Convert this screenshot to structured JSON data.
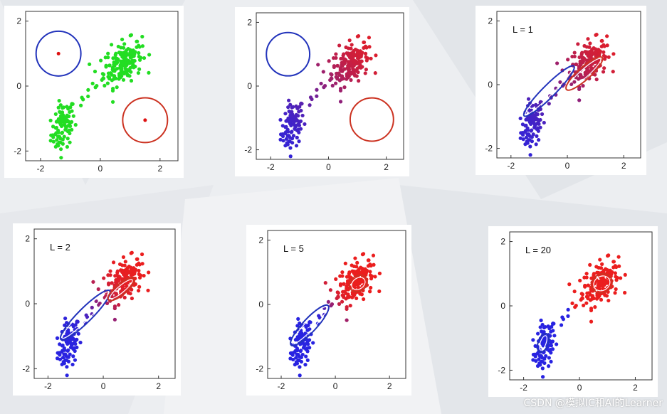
{
  "watermark": "CSDN @模拟IC和AI的Learner",
  "chart_data": [
    {
      "type": "scatter",
      "label": "",
      "xlim": [
        -2.5,
        2.6
      ],
      "ylim": [
        -2.3,
        2.3
      ],
      "xticks": [
        "-2",
        "0",
        "2"
      ],
      "yticks": [
        "2",
        "0",
        "-2"
      ],
      "coloring": "green",
      "centroids": "small",
      "blue_center": [
        -1.4,
        1.0
      ],
      "red_center": [
        1.5,
        -1.05
      ]
    },
    {
      "type": "scatter",
      "label": "",
      "xlim": [
        -2.5,
        2.6
      ],
      "ylim": [
        -2.3,
        2.3
      ],
      "xticks": [
        "-2",
        "0",
        "2"
      ],
      "yticks": [
        "2",
        "0",
        "-2"
      ],
      "coloring": "gradient",
      "spread": 1.3,
      "blue_center": [
        -1.4,
        1.0
      ],
      "red_center": [
        1.5,
        -1.05
      ]
    },
    {
      "type": "scatter",
      "label": "L = 1",
      "xlim": [
        -2.5,
        2.6
      ],
      "ylim": [
        -2.3,
        2.3
      ],
      "xticks": [
        "-2",
        "0",
        "2"
      ],
      "yticks": [
        "2",
        "0",
        "-2"
      ],
      "coloring": "gradient",
      "spread": 1.3,
      "ellipses": "gaussian",
      "blue_ellipse": {
        "c": [
          -0.65,
          -0.2
        ],
        "rx": 1.25,
        "ry": 0.22,
        "angle": 45
      },
      "red_ellipse": {
        "c": [
          0.6,
          0.35
        ],
        "rx": 0.85,
        "ry": 0.22,
        "angle": 42
      }
    },
    {
      "type": "scatter",
      "label": "L = 2",
      "xlim": [
        -2.5,
        2.6
      ],
      "ylim": [
        -2.3,
        2.3
      ],
      "xticks": [
        "-2",
        "0",
        "2"
      ],
      "yticks": [
        "2",
        "0",
        "-2"
      ],
      "coloring": "gradient",
      "spread": 0.55,
      "ellipses": "gaussian",
      "blue_ellipse": {
        "c": [
          -0.65,
          -0.35
        ],
        "rx": 1.25,
        "ry": 0.25,
        "angle": 45
      },
      "red_ellipse": {
        "c": [
          0.65,
          0.45
        ],
        "rx": 0.6,
        "ry": 0.2,
        "angle": 40
      }
    },
    {
      "type": "scatter",
      "label": "L = 5",
      "xlim": [
        -2.5,
        2.6
      ],
      "ylim": [
        -2.3,
        2.3
      ],
      "xticks": [
        "-2",
        "0",
        "2"
      ],
      "yticks": [
        "2",
        "0",
        "-2"
      ],
      "coloring": "gradient",
      "spread": 0.3,
      "ellipses": "gaussian",
      "blue_ellipse": {
        "c": [
          -0.95,
          -0.65
        ],
        "rx": 1.0,
        "ry": 0.25,
        "angle": 47
      },
      "red_ellipse": {
        "c": [
          0.85,
          0.65
        ],
        "rx": 0.35,
        "ry": 0.28,
        "angle": 35
      }
    },
    {
      "type": "scatter",
      "label": "L = 20",
      "xlim": [
        -2.5,
        2.6
      ],
      "ylim": [
        -2.3,
        2.3
      ],
      "xticks": [
        "-2",
        "0",
        "2"
      ],
      "yticks": [
        "2",
        "0",
        "-2"
      ],
      "coloring": "gradient",
      "spread": 0.12,
      "ellipses": "gaussian",
      "blue_ellipse": {
        "c": [
          -1.3,
          -1.15
        ],
        "rx": 0.35,
        "ry": 0.18,
        "angle": 70
      },
      "red_ellipse": {
        "c": [
          0.8,
          0.7
        ],
        "rx": 0.38,
        "ry": 0.33,
        "angle": 30
      }
    }
  ]
}
